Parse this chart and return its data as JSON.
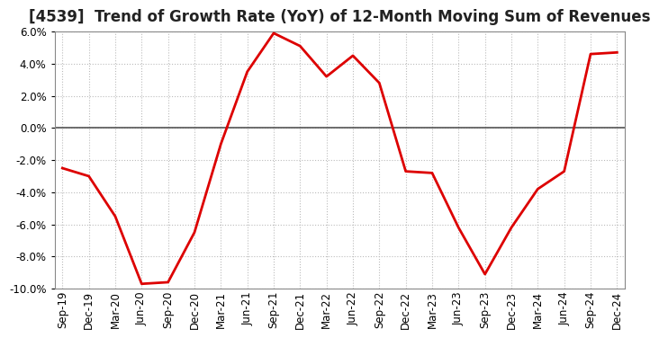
{
  "title": "[4539]  Trend of Growth Rate (YoY) of 12-Month Moving Sum of Revenues",
  "x_labels": [
    "Sep-19",
    "Dec-19",
    "Mar-20",
    "Jun-20",
    "Sep-20",
    "Dec-20",
    "Mar-21",
    "Jun-21",
    "Sep-21",
    "Dec-21",
    "Mar-22",
    "Jun-22",
    "Sep-22",
    "Dec-22",
    "Mar-23",
    "Jun-23",
    "Sep-23",
    "Dec-23",
    "Mar-24",
    "Jun-24",
    "Sep-24",
    "Dec-24"
  ],
  "y_values": [
    -2.5,
    -3.0,
    -5.5,
    -9.7,
    -9.6,
    -6.5,
    -1.0,
    3.5,
    5.9,
    5.1,
    3.2,
    4.5,
    2.8,
    -2.7,
    -2.8,
    -6.2,
    -9.1,
    -6.2,
    -3.8,
    -2.7,
    4.6,
    4.7
  ],
  "line_color": "#dd0000",
  "line_width": 2.0,
  "ylim": [
    -10.0,
    6.0
  ],
  "yticks": [
    -10.0,
    -8.0,
    -6.0,
    -4.0,
    -2.0,
    0.0,
    2.0,
    4.0,
    6.0
  ],
  "grid_color": "#bbbbbb",
  "background_color": "#ffffff",
  "zero_line_color": "#555555",
  "title_fontsize": 12,
  "tick_fontsize": 8.5,
  "spine_color": "#888888"
}
